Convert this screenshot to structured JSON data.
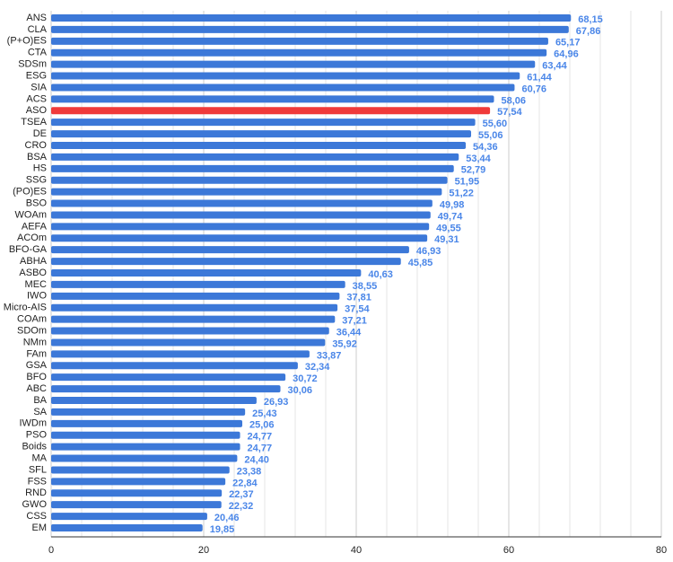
{
  "chart_data": {
    "type": "hbar",
    "categories": [
      "ANS",
      "CLA",
      "(P+O)ES",
      "CTA",
      "SDSm",
      "ESG",
      "SIA",
      "ACS",
      "ASO",
      "TSEA",
      "DE",
      "CRO",
      "BSA",
      "HS",
      "SSG",
      "(PO)ES",
      "BSO",
      "WOAm",
      "AEFA",
      "ACOm",
      "BFO-GA",
      "ABHA",
      "ASBO",
      "MEC",
      "IWO",
      "Micro-AIS",
      "COAm",
      "SDOm",
      "NMm",
      "FAm",
      "GSA",
      "BFO",
      "ABC",
      "BA",
      "SA",
      "IWDm",
      "PSO",
      "Boids",
      "MA",
      "SFL",
      "FSS",
      "RND",
      "GWO",
      "CSS",
      "EM"
    ],
    "values": [
      68.15,
      67.86,
      65.17,
      64.96,
      63.44,
      61.44,
      60.76,
      58.06,
      57.54,
      55.6,
      55.06,
      54.36,
      53.44,
      52.79,
      51.95,
      51.22,
      49.98,
      49.74,
      49.55,
      49.31,
      46.93,
      45.85,
      40.63,
      38.55,
      37.81,
      37.54,
      37.21,
      36.44,
      35.92,
      33.87,
      32.34,
      30.72,
      30.06,
      26.93,
      25.43,
      25.06,
      24.77,
      24.77,
      24.4,
      23.38,
      22.84,
      22.37,
      22.32,
      20.46,
      19.85
    ],
    "value_labels": [
      "68,15",
      "67,86",
      "65,17",
      "64,96",
      "63,44",
      "61,44",
      "60,76",
      "58,06",
      "57,54",
      "55,60",
      "55,06",
      "54,36",
      "53,44",
      "52,79",
      "51,95",
      "51,22",
      "49,98",
      "49,74",
      "49,55",
      "49,31",
      "46,93",
      "45,85",
      "40,63",
      "38,55",
      "37,81",
      "37,54",
      "37,21",
      "36,44",
      "35,92",
      "33,87",
      "32,34",
      "30,72",
      "30,06",
      "26,93",
      "25,43",
      "25,06",
      "24,77",
      "24,77",
      "24,40",
      "23,38",
      "22,84",
      "22,37",
      "22,32",
      "20,46",
      "19,85"
    ],
    "colors": [
      "#3c78d8",
      "#3c78d8",
      "#3c78d8",
      "#3c78d8",
      "#3c78d8",
      "#3c78d8",
      "#3c78d8",
      "#3c78d8",
      "#f03a3a",
      "#3c78d8",
      "#3c78d8",
      "#3c78d8",
      "#3c78d8",
      "#3c78d8",
      "#3c78d8",
      "#3c78d8",
      "#3c78d8",
      "#3c78d8",
      "#3c78d8",
      "#3c78d8",
      "#3c78d8",
      "#3c78d8",
      "#3c78d8",
      "#3c78d8",
      "#3c78d8",
      "#3c78d8",
      "#3c78d8",
      "#3c78d8",
      "#3c78d8",
      "#3c78d8",
      "#3c78d8",
      "#3c78d8",
      "#3c78d8",
      "#3c78d8",
      "#3c78d8",
      "#3c78d8",
      "#3c78d8",
      "#3c78d8",
      "#3c78d8",
      "#3c78d8",
      "#3c78d8",
      "#3c78d8",
      "#3c78d8",
      "#3c78d8",
      "#3c78d8"
    ],
    "label_color": "#4a86e8",
    "xlim": [
      0,
      80
    ],
    "xticks": [
      0,
      20,
      40,
      60,
      80
    ],
    "minor_xticks": [
      4,
      8,
      12,
      16,
      24,
      28,
      32,
      36,
      44,
      48,
      52,
      56,
      64,
      68,
      72,
      76
    ],
    "grid": true
  }
}
